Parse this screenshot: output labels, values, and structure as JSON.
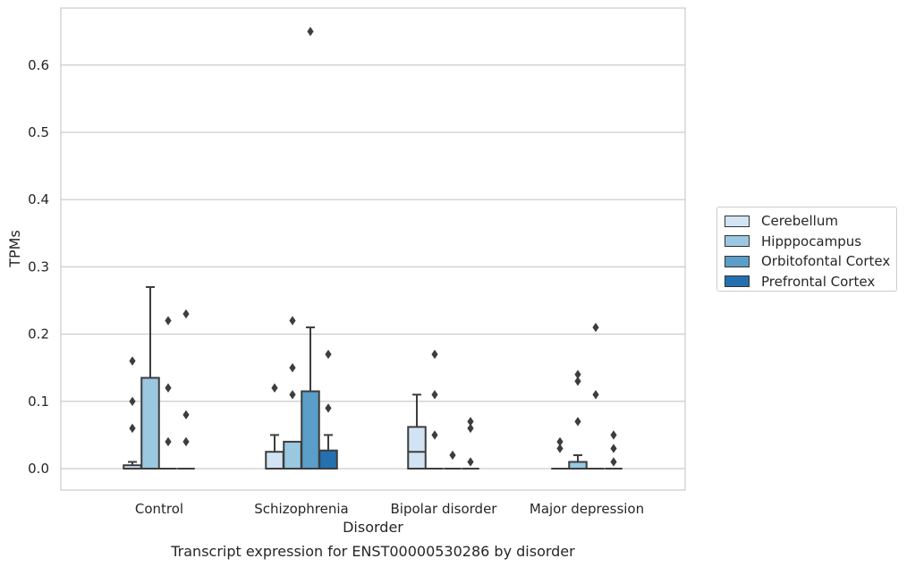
{
  "chart_data": {
    "type": "box",
    "title": "Transcript expression for ENST00000530286 by disorder",
    "xlabel": "Disorder",
    "ylabel": "TPMs",
    "ylim": [
      -0.032,
      0.684
    ],
    "yticks": [
      "0.0",
      "0.1",
      "0.2",
      "0.3",
      "0.4",
      "0.5",
      "0.6"
    ],
    "grid": "horizontal",
    "legend_position": "right",
    "categories": [
      "Control",
      "Schizophrenia",
      "Bipolar disorder",
      "Major depression"
    ],
    "series": [
      {
        "name": "Cerebellum",
        "color": "#d2e3f3",
        "boxes": [
          {
            "q1": 0.0,
            "median": 0.0,
            "q3": 0.005,
            "whisker_low": 0.0,
            "whisker_high": 0.01,
            "outliers": [
              0.06,
              0.1,
              0.16
            ]
          },
          {
            "q1": 0.0,
            "median": 0.0,
            "q3": 0.025,
            "whisker_low": 0.0,
            "whisker_high": 0.05,
            "outliers": [
              0.12
            ]
          },
          {
            "q1": 0.0,
            "median": 0.025,
            "q3": 0.062,
            "whisker_low": 0.0,
            "whisker_high": 0.11,
            "outliers": []
          },
          {
            "q1": 0.0,
            "median": 0.0,
            "q3": 0.0,
            "whisker_low": 0.0,
            "whisker_high": 0.0,
            "outliers": [
              0.03,
              0.04
            ]
          }
        ]
      },
      {
        "name": "Hipppocampus",
        "color": "#9ac8e0",
        "boxes": [
          {
            "q1": 0.0,
            "median": 0.0,
            "q3": 0.135,
            "whisker_low": 0.0,
            "whisker_high": 0.27,
            "outliers": []
          },
          {
            "q1": 0.0,
            "median": 0.0,
            "q3": 0.04,
            "whisker_low": 0.0,
            "whisker_high": 0.04,
            "outliers": [
              0.11,
              0.15,
              0.22
            ]
          },
          {
            "q1": 0.0,
            "median": 0.0,
            "q3": 0.0,
            "whisker_low": 0.0,
            "whisker_high": 0.0,
            "outliers": [
              0.05,
              0.11,
              0.17
            ]
          },
          {
            "q1": 0.0,
            "median": 0.0,
            "q3": 0.01,
            "whisker_low": 0.0,
            "whisker_high": 0.02,
            "outliers": [
              0.07,
              0.13,
              0.14
            ]
          }
        ]
      },
      {
        "name": "Orbitofontal Cortex",
        "color": "#5a9ec9",
        "boxes": [
          {
            "q1": 0.0,
            "median": 0.0,
            "q3": 0.0,
            "whisker_low": 0.0,
            "whisker_high": 0.0,
            "outliers": [
              0.04,
              0.12,
              0.22
            ]
          },
          {
            "q1": 0.0,
            "median": 0.0,
            "q3": 0.115,
            "whisker_low": 0.0,
            "whisker_high": 0.21,
            "outliers": [
              0.65
            ]
          },
          {
            "q1": 0.0,
            "median": 0.0,
            "q3": 0.0,
            "whisker_low": 0.0,
            "whisker_high": 0.0,
            "outliers": [
              0.02
            ]
          },
          {
            "q1": 0.0,
            "median": 0.0,
            "q3": 0.0,
            "whisker_low": 0.0,
            "whisker_high": 0.0,
            "outliers": [
              0.11,
              0.21
            ]
          }
        ]
      },
      {
        "name": "Prefrontal Cortex",
        "color": "#2470b0",
        "boxes": [
          {
            "q1": 0.0,
            "median": 0.0,
            "q3": 0.0,
            "whisker_low": 0.0,
            "whisker_high": 0.0,
            "outliers": [
              0.04,
              0.08,
              0.23
            ]
          },
          {
            "q1": 0.0,
            "median": 0.0,
            "q3": 0.027,
            "whisker_low": 0.0,
            "whisker_high": 0.05,
            "outliers": [
              0.09,
              0.17
            ]
          },
          {
            "q1": 0.0,
            "median": 0.0,
            "q3": 0.0,
            "whisker_low": 0.0,
            "whisker_high": 0.0,
            "outliers": [
              0.01,
              0.06,
              0.07
            ]
          },
          {
            "q1": 0.0,
            "median": 0.0,
            "q3": 0.0,
            "whisker_low": 0.0,
            "whisker_high": 0.0,
            "outliers": [
              0.01,
              0.03,
              0.05
            ]
          }
        ]
      }
    ]
  }
}
